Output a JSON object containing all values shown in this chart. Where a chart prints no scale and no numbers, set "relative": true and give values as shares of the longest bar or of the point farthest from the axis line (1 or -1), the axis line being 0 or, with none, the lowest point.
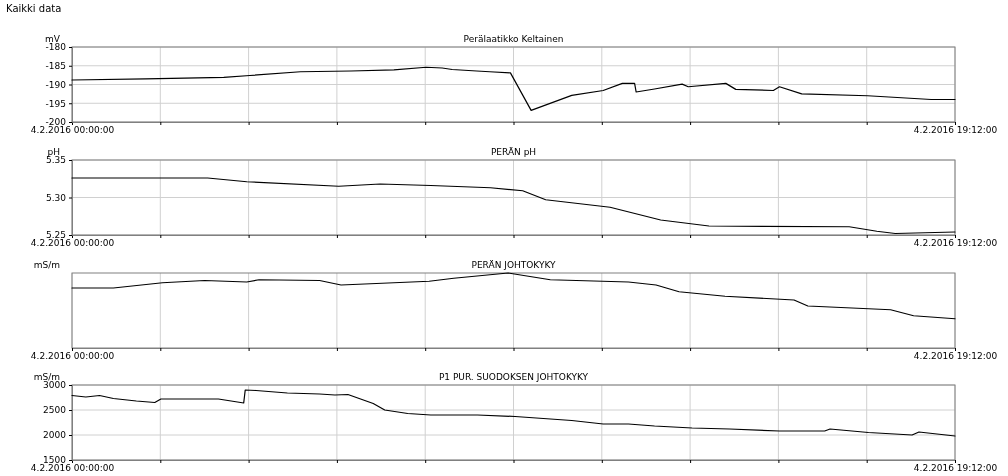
{
  "chart_data": [
    {
      "type": "line",
      "title": "Perälaatikko Keltainen",
      "ylabel": "mV",
      "annotations": [
        "Kaikki data"
      ],
      "grid": true,
      "xlim": [
        "2016-02-04T00:00",
        "2016-02-04T19:12"
      ],
      "ylim": [
        -200,
        -180
      ],
      "xticks": [
        {
          "value": "2016-02-04T00:00",
          "label": "4.2.2016 00:00:00"
        },
        {
          "value": "2016-02-04T01:55:12",
          "label": null
        },
        {
          "value": "2016-02-04T03:50:24",
          "label": null
        },
        {
          "value": "2016-02-04T05:45:36",
          "label": null
        },
        {
          "value": "2016-02-04T07:40:48",
          "label": null
        },
        {
          "value": "2016-02-04T09:36",
          "label": null
        },
        {
          "value": "2016-02-04T11:31:12",
          "label": null
        },
        {
          "value": "2016-02-04T13:26:24",
          "label": null
        },
        {
          "value": "2016-02-04T15:21:36",
          "label": null
        },
        {
          "value": "2016-02-04T17:16:48",
          "label": null
        },
        {
          "value": "2016-02-04T19:12",
          "label": "4.2.2016 19:12:00"
        }
      ],
      "yticks": [
        -180,
        -185,
        -190,
        -195,
        -200
      ],
      "series": [
        {
          "color": "#000000",
          "x": [
            "2016-02-04T00:00",
            "2016-02-04T01:36",
            "2016-02-04T03:18",
            "2016-02-04T03:52",
            "2016-02-04T04:58",
            "2016-02-04T06:04",
            "2016-02-04T07:00",
            "2016-02-04T07:42",
            "2016-02-04T08:03",
            "2016-02-04T08:16",
            "2016-02-04T08:48",
            "2016-02-04T09:05",
            "2016-02-04T09:32",
            "2016-02-04T09:59",
            "2016-02-04T10:52",
            "2016-02-04T11:33",
            "2016-02-04T11:58",
            "2016-02-04T12:14",
            "2016-02-04T12:16",
            "2016-02-04T12:40",
            "2016-02-04T13:16",
            "2016-02-04T13:24",
            "2016-02-04T14:13",
            "2016-02-04T14:26",
            "2016-02-04T15:15",
            "2016-02-04T15:23",
            "2016-02-04T15:52",
            "2016-02-04T17:18",
            "2016-02-04T18:41",
            "2016-02-04T19:12"
          ],
          "values": [
            -188.8,
            -188.5,
            -188.1,
            -187.6,
            -186.6,
            -186.4,
            -186.1,
            -185.4,
            -185.6,
            -186.0,
            -186.4,
            -186.6,
            -186.9,
            -196.9,
            -192.9,
            -191.6,
            -189.7,
            -189.7,
            -192.0,
            -191.2,
            -189.9,
            -190.6,
            -189.7,
            -191.3,
            -191.6,
            -190.6,
            -192.5,
            -193.0,
            -194.0,
            -194.0
          ]
        }
      ]
    },
    {
      "type": "line",
      "title": "PERÄN pH",
      "ylabel": "pH",
      "grid": true,
      "xlim": [
        "2016-02-04T00:00",
        "2016-02-04T19:12"
      ],
      "ylim": [
        5.25,
        5.35
      ],
      "xticks": [
        {
          "value": "2016-02-04T00:00",
          "label": "4.2.2016 00:00:00"
        },
        {
          "value": "2016-02-04T01:55:12",
          "label": null
        },
        {
          "value": "2016-02-04T03:50:24",
          "label": null
        },
        {
          "value": "2016-02-04T05:45:36",
          "label": null
        },
        {
          "value": "2016-02-04T07:40:48",
          "label": null
        },
        {
          "value": "2016-02-04T09:36",
          "label": null
        },
        {
          "value": "2016-02-04T11:31:12",
          "label": null
        },
        {
          "value": "2016-02-04T13:26:24",
          "label": null
        },
        {
          "value": "2016-02-04T15:21:36",
          "label": null
        },
        {
          "value": "2016-02-04T17:16:48",
          "label": null
        },
        {
          "value": "2016-02-04T19:12",
          "label": "4.2.2016 19:12:00"
        }
      ],
      "yticks": [
        {
          "value": 5.35,
          "label": "5.35"
        },
        {
          "value": 5.3,
          "label": "5.30"
        },
        {
          "value": 5.25,
          "label": "5.25"
        }
      ],
      "series": [
        {
          "color": "#000000",
          "x": [
            "2016-02-04T00:00",
            "2016-02-04T02:57",
            "2016-02-04T03:48",
            "2016-02-04T05:48",
            "2016-02-04T06:42",
            "2016-02-04T07:48",
            "2016-02-04T09:06",
            "2016-02-04T09:48",
            "2016-02-04T10:18",
            "2016-02-04T11:42",
            "2016-02-04T12:48",
            "2016-02-04T13:51",
            "2016-02-04T16:54",
            "2016-02-04T17:30",
            "2016-02-04T17:54",
            "2016-02-04T19:12"
          ],
          "values": [
            5.326,
            5.326,
            5.321,
            5.315,
            5.318,
            5.316,
            5.313,
            5.309,
            5.297,
            5.287,
            5.27,
            5.262,
            5.261,
            5.255,
            5.252,
            5.254
          ]
        }
      ]
    },
    {
      "type": "line",
      "title": "PERÄN JOHTOKYKY",
      "ylabel": "mS/m",
      "relative": true,
      "grid": "x",
      "xlim": [
        "2016-02-04T00:00",
        "2016-02-04T19:12"
      ],
      "xticks": [
        {
          "value": "2016-02-04T00:00",
          "label": "4.2.2016 00:00:00"
        },
        {
          "value": "2016-02-04T01:55:12",
          "label": null
        },
        {
          "value": "2016-02-04T03:50:24",
          "label": null
        },
        {
          "value": "2016-02-04T05:45:36",
          "label": null
        },
        {
          "value": "2016-02-04T07:40:48",
          "label": null
        },
        {
          "value": "2016-02-04T09:36",
          "label": null
        },
        {
          "value": "2016-02-04T11:31:12",
          "label": null
        },
        {
          "value": "2016-02-04T13:26:24",
          "label": null
        },
        {
          "value": "2016-02-04T15:21:36",
          "label": null
        },
        {
          "value": "2016-02-04T17:16:48",
          "label": null
        },
        {
          "value": "2016-02-04T19:12",
          "label": "4.2.2016 19:12:00"
        }
      ],
      "series": [
        {
          "color": "#000000",
          "x": [
            "2016-02-04T00:00",
            "2016-02-04T00:54",
            "2016-02-04T01:58",
            "2016-02-04T02:53",
            "2016-02-04T03:48",
            "2016-02-04T04:04",
            "2016-02-04T05:23",
            "2016-02-04T05:51",
            "2016-02-04T07:46",
            "2016-02-04T08:18",
            "2016-02-04T09:29",
            "2016-02-04T10:24",
            "2016-02-04T12:06",
            "2016-02-04T12:42",
            "2016-02-04T13:12",
            "2016-02-04T14:12",
            "2016-02-04T15:42",
            "2016-02-04T16:00",
            "2016-02-04T17:48",
            "2016-02-04T18:18",
            "2016-02-04T19:12"
          ],
          "values": [
            0.8,
            0.8,
            0.87,
            0.9,
            0.88,
            0.91,
            0.9,
            0.84,
            0.89,
            0.93,
            1,
            0.91,
            0.88,
            0.84,
            0.75,
            0.69,
            0.64,
            0.56,
            0.51,
            0.43,
            0.39
          ]
        }
      ]
    },
    {
      "type": "line",
      "title": "P1 PUR. SUODOKSEN JOHTOKYKY",
      "ylabel": "mS/m",
      "grid": true,
      "xlim": [
        "2016-02-04T00:00",
        "2016-02-04T19:12"
      ],
      "ylim": [
        1500,
        3000
      ],
      "xticks": [
        {
          "value": "2016-02-04T00:00",
          "label": "4.2.2016 00:00:00"
        },
        {
          "value": "2016-02-04T01:55:12",
          "label": null
        },
        {
          "value": "2016-02-04T03:50:24",
          "label": null
        },
        {
          "value": "2016-02-04T05:45:36",
          "label": null
        },
        {
          "value": "2016-02-04T07:40:48",
          "label": null
        },
        {
          "value": "2016-02-04T09:36",
          "label": null
        },
        {
          "value": "2016-02-04T11:31:12",
          "label": null
        },
        {
          "value": "2016-02-04T13:26:24",
          "label": null
        },
        {
          "value": "2016-02-04T15:21:36",
          "label": null
        },
        {
          "value": "2016-02-04T17:16:48",
          "label": null
        },
        {
          "value": "2016-02-04T19:12",
          "label": "4.2.2016 19:12:00"
        }
      ],
      "yticks": [
        3000,
        2500,
        2000,
        1500
      ],
      "series": [
        {
          "color": "#000000",
          "x": [
            "2016-02-04T00:00",
            "2016-02-04T00:18",
            "2016-02-04T00:36",
            "2016-02-04T00:54",
            "2016-02-04T01:24",
            "2016-02-04T01:48",
            "2016-02-04T01:56",
            "2016-02-04T02:38",
            "2016-02-04T03:11",
            "2016-02-04T03:40",
            "2016-02-04T03:44",
            "2016-02-04T03:46",
            "2016-02-04T04:00",
            "2016-02-04T04:41",
            "2016-02-04T05:23",
            "2016-02-04T05:43",
            "2016-02-04T06:00",
            "2016-02-04T06:33",
            "2016-02-04T06:48",
            "2016-02-04T07:18",
            "2016-02-04T07:48",
            "2016-02-04T08:49",
            "2016-02-04T09:38",
            "2016-02-04T10:52",
            "2016-02-04T11:33",
            "2016-02-04T12:06",
            "2016-02-04T12:40",
            "2016-02-04T13:29",
            "2016-02-04T14:18",
            "2016-02-04T15:23",
            "2016-02-04T16:22",
            "2016-02-04T16:29",
            "2016-02-04T17:19",
            "2016-02-04T18:16",
            "2016-02-04T18:25",
            "2016-02-04T19:12"
          ],
          "values": [
            2790,
            2760,
            2790,
            2730,
            2680,
            2650,
            2720,
            2720,
            2720,
            2650,
            2640,
            2900,
            2890,
            2840,
            2820,
            2800,
            2810,
            2630,
            2500,
            2430,
            2400,
            2400,
            2370,
            2290,
            2220,
            2220,
            2180,
            2140,
            2120,
            2080,
            2080,
            2120,
            2050,
            2000,
            2060,
            1980
          ]
        }
      ]
    }
  ]
}
